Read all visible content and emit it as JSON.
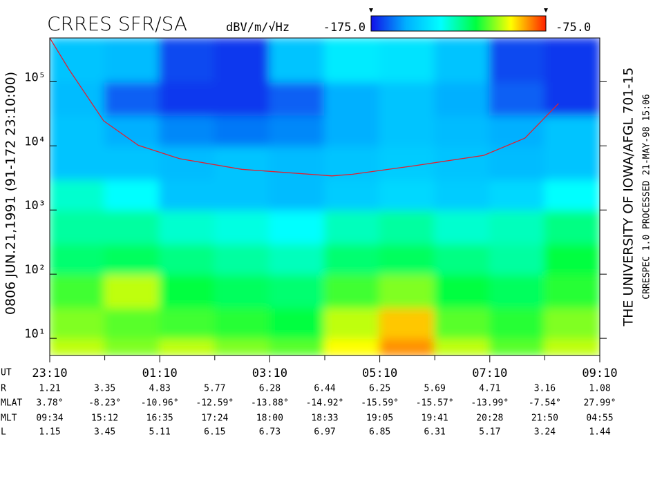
{
  "chart_data": {
    "type": "heatmap",
    "title": "CRRES SFR/SA",
    "colorbar_label": "dBV/m/√Hz",
    "zlim": [
      -175,
      -75
    ],
    "zticks": [
      {
        "value": -175,
        "label": "-175.0"
      },
      {
        "value": -75,
        "label": "-75.0"
      }
    ],
    "colormap": [
      "#1010e8",
      "#00b0ff",
      "#00ffff",
      "#00ff40",
      "#ffff00",
      "#ff2000"
    ],
    "left_label": "0806   JUN.21,1991   (91-172 23:10:00)",
    "right_label": "THE UNIVERSITY OF IOWA/AFGL 701-15",
    "right_sublabel": "CRRESPEC 1.0   PROCESSED 21-MAY-98  15:06",
    "log_y": true,
    "ylim": [
      5.4,
      480000
    ],
    "yticks": [
      {
        "value": 10,
        "label": "10¹"
      },
      {
        "value": 100,
        "label": "10²"
      },
      {
        "value": 1000,
        "label": "10³"
      },
      {
        "value": 10000,
        "label": "10⁴"
      },
      {
        "value": 100000,
        "label": "10⁵"
      }
    ],
    "xlim": [
      0,
      10
    ],
    "xticks": [
      {
        "value": 0,
        "label": "23:10"
      },
      {
        "value": 2,
        "label": "01:10"
      },
      {
        "value": 4,
        "label": "03:10"
      },
      {
        "value": 6,
        "label": "05:10"
      },
      {
        "value": 8,
        "label": "07:10"
      },
      {
        "value": 10,
        "label": "09:10"
      }
    ],
    "xticks_minor": [
      1,
      3,
      5,
      7,
      9
    ],
    "x_edges": [
      0,
      1,
      2,
      3,
      4,
      5,
      6,
      7,
      8,
      9,
      10
    ],
    "y_edges": [
      5.4,
      10,
      30,
      100,
      300,
      1000,
      3000,
      10000,
      30000,
      100000,
      480000
    ],
    "z": [
      [
        -100,
        -105,
        -100,
        -105,
        -108,
        -95,
        -85,
        -100,
        -108,
        -100
      ],
      [
        -105,
        -108,
        -110,
        -112,
        -115,
        -100,
        -90,
        -108,
        -112,
        -105
      ],
      [
        -110,
        -100,
        -115,
        -118,
        -120,
        -110,
        -105,
        -115,
        -118,
        -112
      ],
      [
        -120,
        -118,
        -122,
        -125,
        -128,
        -120,
        -118,
        -122,
        -125,
        -115
      ],
      [
        -125,
        -125,
        -130,
        -132,
        -135,
        -128,
        -125,
        -130,
        -128,
        -122
      ],
      [
        -130,
        -135,
        -150,
        -150,
        -152,
        -148,
        -145,
        -148,
        -145,
        -135
      ],
      [
        -150,
        -150,
        -152,
        -150,
        -152,
        -150,
        -148,
        -150,
        -152,
        -150
      ],
      [
        -150,
        -155,
        -160,
        -162,
        -160,
        -155,
        -150,
        -152,
        -155,
        -150
      ],
      [
        -152,
        -165,
        -170,
        -170,
        -165,
        -155,
        -150,
        -155,
        -165,
        -170
      ],
      [
        -150,
        -152,
        -168,
        -170,
        -150,
        -140,
        -142,
        -150,
        -168,
        -170
      ]
    ],
    "line": {
      "color": "#e02030",
      "x": [
        0,
        0.35,
        0.98,
        1.61,
        2.36,
        3.49,
        5.13,
        5.5,
        6.63,
        7.89,
        8.64,
        9.25
      ],
      "values": [
        480000,
        155000,
        24500,
        10200,
        6300,
        4300,
        3400,
        3600,
        4900,
        7100,
        13200,
        45700
      ]
    },
    "ephemeris": {
      "labels": [
        "UT",
        "R",
        "MLAT",
        "MLT",
        "L"
      ],
      "rows": [
        [
          "1.21",
          "3.35",
          "4.83",
          "5.77",
          "6.28",
          "6.44",
          "6.25",
          "5.69",
          "4.71",
          "3.16",
          "1.08"
        ],
        [
          "3.78°",
          "-8.23°",
          "-10.96°",
          "-12.59°",
          "-13.88°",
          "-14.92°",
          "-15.59°",
          "-15.57°",
          "-13.99°",
          "-7.54°",
          "27.99°"
        ],
        [
          "09:34",
          "15:12",
          "16:35",
          "17:24",
          "18:00",
          "18:33",
          "19:05",
          "19:41",
          "20:28",
          "21:50",
          "04:55"
        ],
        [
          "1.15",
          "3.45",
          "5.11",
          "6.15",
          "6.73",
          "6.97",
          "6.85",
          "6.31",
          "5.17",
          "3.24",
          "1.44"
        ]
      ]
    }
  }
}
